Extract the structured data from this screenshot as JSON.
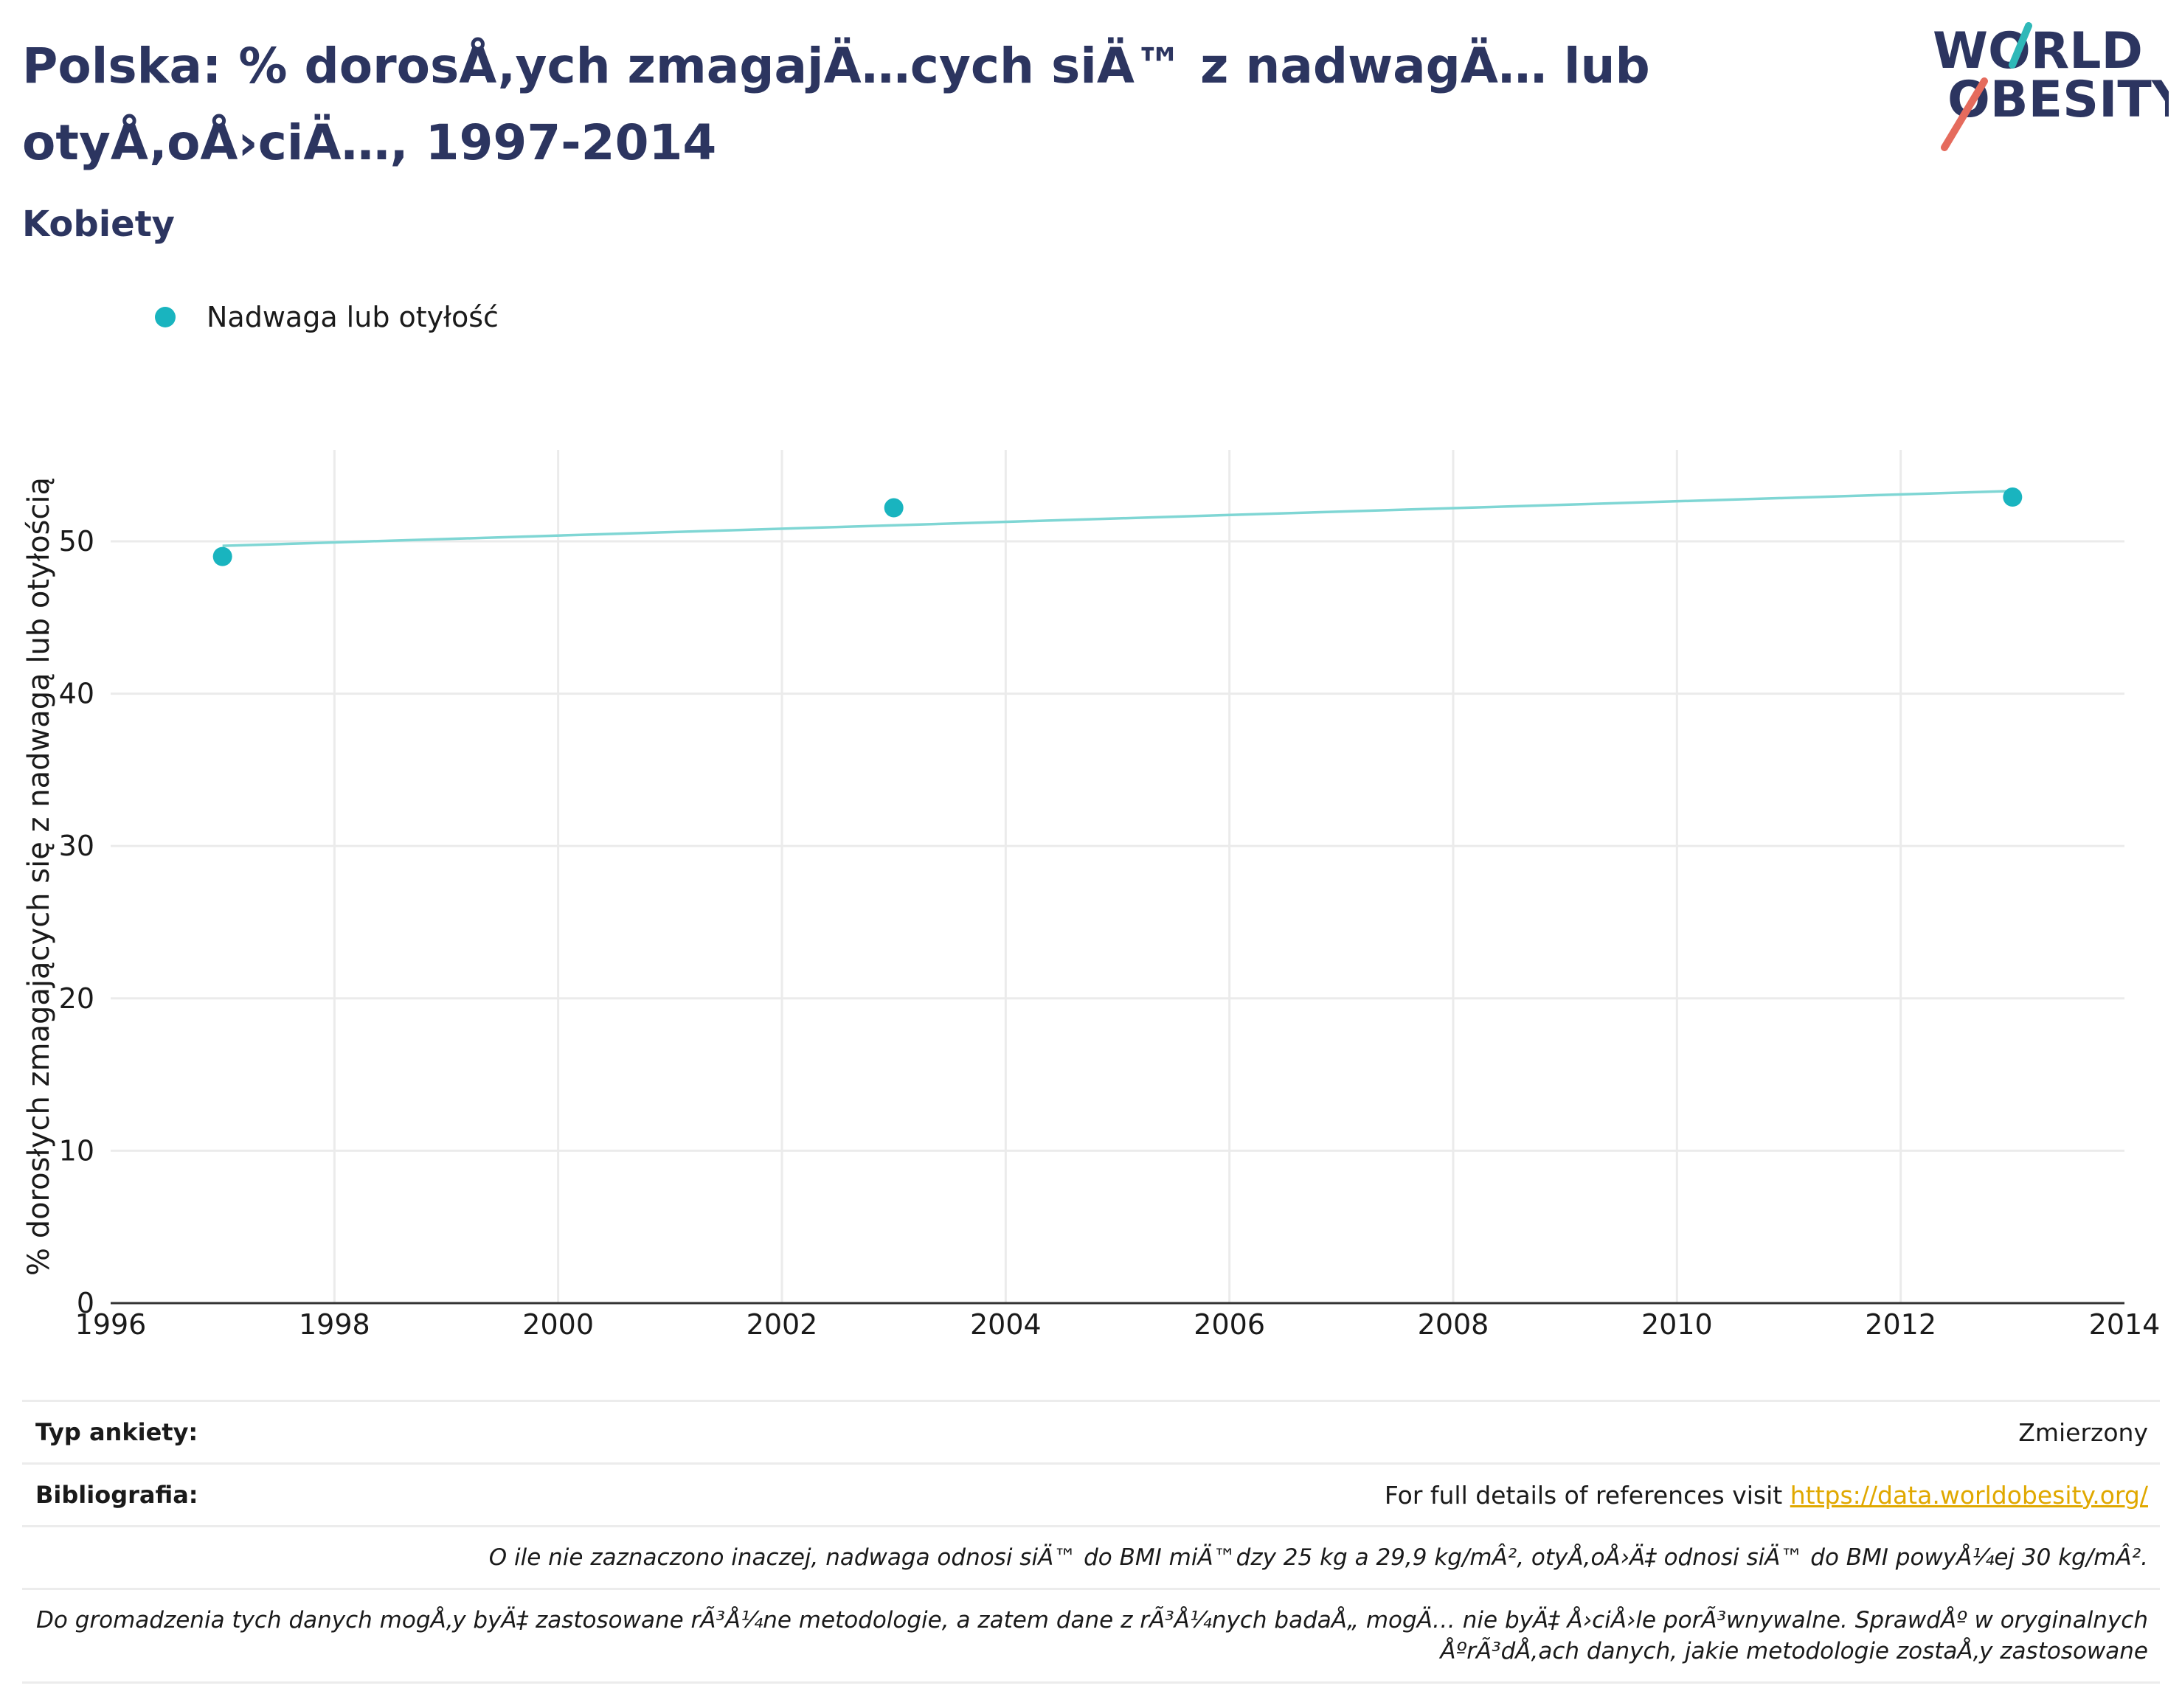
{
  "title": "Polska: % dorosÅ‚ych zmagajÄ…cych siÄ™ z nadwagÄ… lub otyÅ‚oÅ›ciÄ…, 1997-2014",
  "subtitle": "Kobiety",
  "logo": {
    "line1": "WORLD",
    "line2": "OBESITY",
    "accent_teal": "#2fb8b8",
    "accent_coral": "#e56b5d"
  },
  "colors": {
    "series": "#19b4bf",
    "trendline": "#7fd6d4",
    "title": "#2c3560",
    "grid": "#ebebeb",
    "axis": "#333333",
    "link": "#e0a800"
  },
  "chart_data": {
    "type": "scatter",
    "title": "Polska: % dorosÅ‚ych zmagajÄ…cych siÄ™ z nadwagÄ… lub otyÅ‚oÅ›ciÄ…, 1997-2014",
    "subtitle": "Kobiety",
    "xlabel": "",
    "ylabel": "% dorosłych zmagających się z nadwagą lub otyłością",
    "xlim": [
      1996,
      2014
    ],
    "ylim": [
      0,
      56
    ],
    "xticks": [
      1996,
      1998,
      2000,
      2002,
      2004,
      2006,
      2008,
      2010,
      2012,
      2014
    ],
    "yticks": [
      0,
      10,
      20,
      30,
      40,
      50
    ],
    "grid": true,
    "legend_position": "top-left",
    "series": [
      {
        "name": "Nadwaga lub otyłość",
        "x": [
          1997,
          2003,
          2013
        ],
        "y": [
          49.0,
          52.2,
          52.9
        ]
      }
    ],
    "trendline": {
      "x": [
        1997,
        2013
      ],
      "y": [
        49.7,
        53.3
      ]
    }
  },
  "info": {
    "survey_label": "Typ ankiety:",
    "survey_value": "Zmierzony",
    "bib_label": "Bibliografia:",
    "bib_text": "For full details of references visit ",
    "bib_link": "https://data.worldobesity.org/",
    "note1": "O ile nie zaznaczono inaczej, nadwaga odnosi siÄ™ do BMI miÄ™dzy 25 kg a 29,9 kg/mÂ², otyÅ‚oÅ›Ä‡ odnosi siÄ™ do BMI powyÅ¼ej 30 kg/mÂ².",
    "note2": "Do gromadzenia tych danych mogÅ‚y byÄ‡ zastosowane rÃ³Å¼ne metodologie, a zatem dane z rÃ³Å¼nych badaÅ„ mogÄ… nie byÄ‡ Å›ciÅ›le porÃ³wnywalne. SprawdÅº w oryginalnych ÅºrÃ³dÅ‚ach danych, jakie metodologie zostaÅ‚y zastosowane"
  }
}
